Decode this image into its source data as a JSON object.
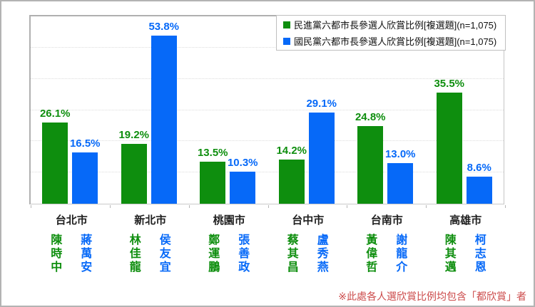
{
  "chart_data": {
    "type": "bar",
    "title": "",
    "categories": [
      "台北市",
      "新北市",
      "桃園市",
      "台中市",
      "台南市",
      "高雄市"
    ],
    "series": [
      {
        "name": "民進黨六都市長參選人欣賞比例[複選題](n=1,075)",
        "color": "#0E8E0E",
        "values": [
          26.1,
          19.2,
          13.5,
          14.2,
          24.8,
          35.5
        ],
        "candidates": [
          "陳時中",
          "林佳龍",
          "鄭運鵬",
          "蔡其昌",
          "黃偉哲",
          "陳其邁"
        ]
      },
      {
        "name": "國民黨六都市長參選人欣賞比例[複選題](n=1,075)",
        "color": "#0669F8",
        "values": [
          16.5,
          53.8,
          10.3,
          29.1,
          13.0,
          8.6
        ],
        "candidates": [
          "蔣萬安",
          "侯友宜",
          "張善政",
          "盧秀燕",
          "謝龍介",
          "柯志恩"
        ]
      }
    ],
    "ylim": [
      0,
      60
    ],
    "grid": true,
    "gridline_step": 10,
    "legend_position": "top-right",
    "value_suffix": "%",
    "footnote": "※此處各人選欣賞比例均包含「都欣賞」者"
  }
}
